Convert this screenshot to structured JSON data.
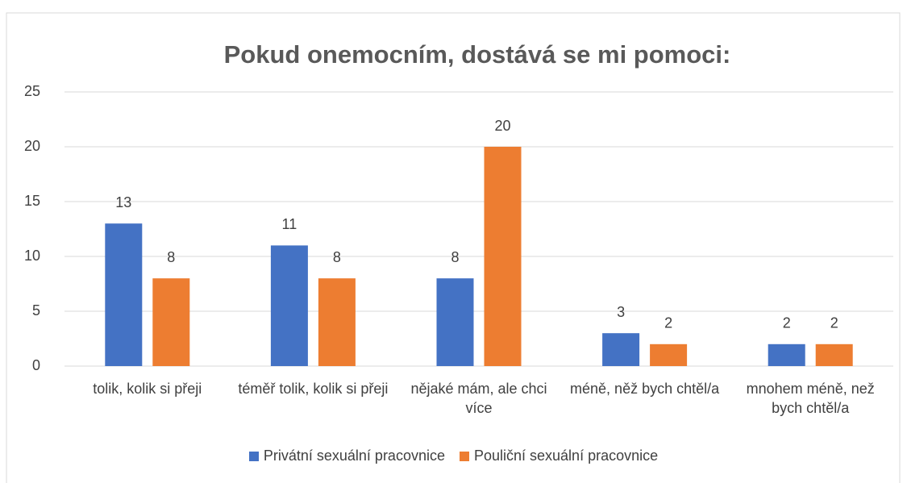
{
  "chart_data": {
    "type": "bar",
    "title": "Pokud onemocním, dostává se mi pomoci:",
    "categories": [
      "tolik, kolik si přeji",
      "téměř tolik, kolik si přeji",
      "nějaké mám, ale chci více",
      "méně, něž bych chtěl/a",
      "mnohem méně, než bych chtěl/a"
    ],
    "series": [
      {
        "name": "Privátní sexuální pracovnice",
        "color": "#4472c4",
        "values": [
          13,
          11,
          8,
          3,
          2
        ]
      },
      {
        "name": "Pouliční sexuální pracovnice",
        "color": "#ed7d31",
        "values": [
          8,
          8,
          20,
          2,
          2
        ]
      }
    ],
    "ylim": [
      0,
      25
    ],
    "yticks": [
      0,
      5,
      10,
      15,
      20,
      25
    ],
    "grid": true,
    "legend": "bottom"
  }
}
